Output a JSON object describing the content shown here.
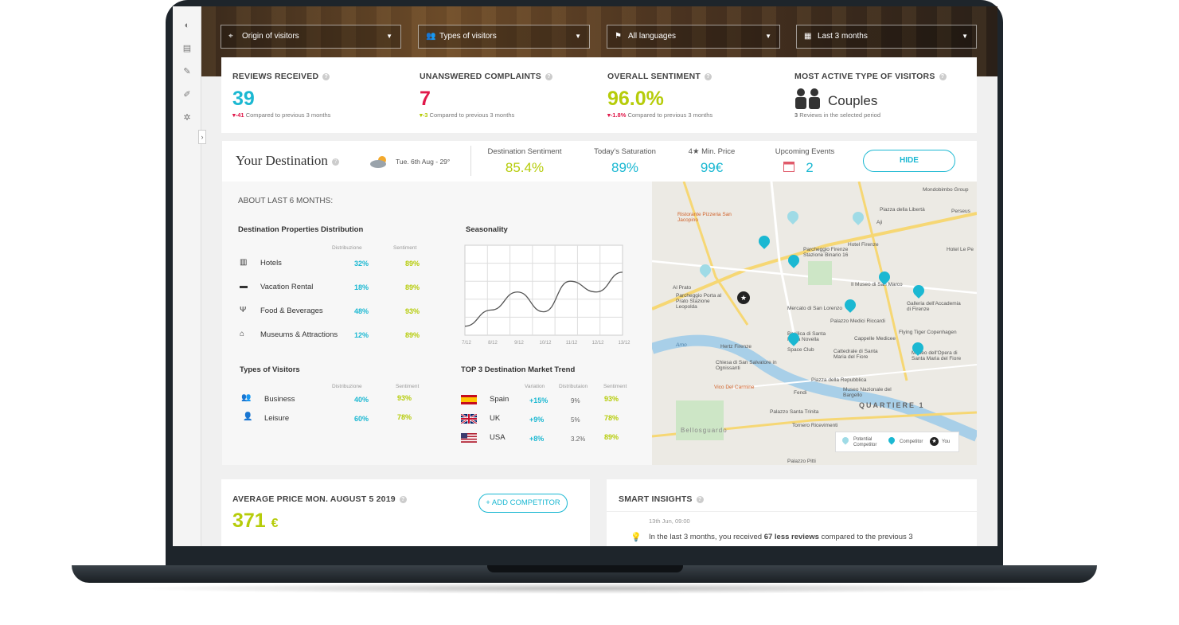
{
  "filters": {
    "origin": "Origin of visitors",
    "types": "Types of visitors",
    "languages": "All languages",
    "period": "Last 3 months"
  },
  "kpis": {
    "reviews": {
      "title": "REVIEWS RECEIVED",
      "value": "39",
      "delta": "▾-41",
      "note": "Compared to previous 3 months"
    },
    "complaints": {
      "title": "UNANSWERED COMPLAINTS",
      "value": "7",
      "delta": "▾-3",
      "note": "Compared to previous 3 months"
    },
    "sentiment": {
      "title": "OVERALL SENTIMENT",
      "value": "96.0%",
      "delta": "▾-1.8%",
      "note": "Compared to previous 3 months"
    },
    "visitors": {
      "title": "MOST ACTIVE TYPE OF VISITORS",
      "value": "Couples",
      "count": "3",
      "note": "Reviews in the selected period"
    }
  },
  "destination": {
    "title": "Your Destination",
    "weather": "Tue. 6th Aug - 29°",
    "stats": [
      {
        "label": "Destination Sentiment",
        "value": "85.4%"
      },
      {
        "label": "Today's Saturation",
        "value": "89%"
      },
      {
        "label": "4★ Min. Price",
        "value": "99€"
      },
      {
        "label": "Upcoming Events",
        "value": "2"
      }
    ],
    "hide_label": "HIDE",
    "about": "ABOUT LAST 6 MONTHS:",
    "properties": {
      "title": "Destination Properties Distribution",
      "col1": "Distribuzione",
      "col2": "Sentiment",
      "rows": [
        {
          "label": "Hotels",
          "dist": "32%",
          "sent": "89%"
        },
        {
          "label": "Vacation Rental",
          "dist": "18%",
          "sent": "89%"
        },
        {
          "label": "Food & Beverages",
          "dist": "48%",
          "sent": "93%"
        },
        {
          "label": "Museums & Attractions",
          "dist": "12%",
          "sent": "89%"
        }
      ]
    },
    "seasonality": {
      "title": "Seasonality",
      "ticks": [
        "7/12",
        "8/12",
        "9/12",
        "10/12",
        "11/12",
        "12/12",
        "13/12"
      ]
    },
    "visitors": {
      "title": "Types of Visitors",
      "col1": "Distribuzione",
      "col2": "Sentiment",
      "rows": [
        {
          "label": "Business",
          "dist": "40%",
          "sent": "93%"
        },
        {
          "label": "Leisure",
          "dist": "60%",
          "sent": "78%"
        }
      ]
    },
    "market": {
      "title": "TOP 3 Destination Market Trend",
      "col1": "Variation",
      "col2": "Distributaion",
      "col3": "Sentiment",
      "rows": [
        {
          "label": "Spain",
          "variation": "+15%",
          "dist": "9%",
          "sent": "93%"
        },
        {
          "label": "UK",
          "variation": "+9%",
          "dist": "5%",
          "sent": "78%"
        },
        {
          "label": "USA",
          "variation": "+8%",
          "dist": "3.2%",
          "sent": "89%"
        }
      ]
    },
    "map": {
      "labels": [
        "Mondobimbo Group",
        "Piazza della Libertà",
        "Perseus",
        "Ristorante Pizzeria San Jacopino",
        "Parcheggio Firenze Stazione Binario 16",
        "Hotel Firenze",
        "Al Prato",
        "Parcheggio Porta al Prato Stazione Leopolda",
        "Il Museo di San Marco",
        "Galleria dell'Accademia di Firenze",
        "Mercato di San Lorenzo",
        "Palazzo Medici Riccardi",
        "Flying Tiger Copenhagen",
        "Cappelle Medicee",
        "Basilica di Santa Maria Novella",
        "Space Club",
        "Hertz Firenze",
        "Cattedrale di Santa Maria del Fiore",
        "Museo dell'Opera di Santa Maria del Fiore",
        "Chiesa di San Salvatore in Ognissanti",
        "Piazza della Repubblica",
        "Vico Del Carmine",
        "Fendi",
        "Palazzo Santa Trinita",
        "Museo Nazionale del Bargello",
        "QUARTIERE 1",
        "Tornero Ricevimenti",
        "Bellosguardo",
        "Palazzo Pitti",
        "Arno",
        "Aji",
        "Hotel Le Pe"
      ],
      "legend": {
        "potential": "Potential Competitor",
        "competitor": "Competitor",
        "you": "You"
      }
    }
  },
  "avg_price": {
    "title": "AVERAGE PRICE MON. AUGUST 5 2019",
    "value": "371",
    "currency": "€",
    "add_label": "+ ADD COMPETITOR"
  },
  "insights": {
    "title": "SMART INSIGHTS",
    "time": "13th Jun, 09:00",
    "text_pre": "In the last 3 months, you received ",
    "text_bold": "67 less reviews",
    "text_post": " compared to the previous 3"
  },
  "chart_data": {
    "type": "line",
    "title": "Seasonality",
    "categories": [
      "7/12",
      "8/12",
      "9/12",
      "10/12",
      "11/12",
      "12/12",
      "13/12"
    ],
    "series": [
      {
        "values": [
          10,
          28,
          48,
          26,
          60,
          48,
          70
        ]
      }
    ],
    "grid": true,
    "ylim": [
      0,
      100
    ]
  }
}
